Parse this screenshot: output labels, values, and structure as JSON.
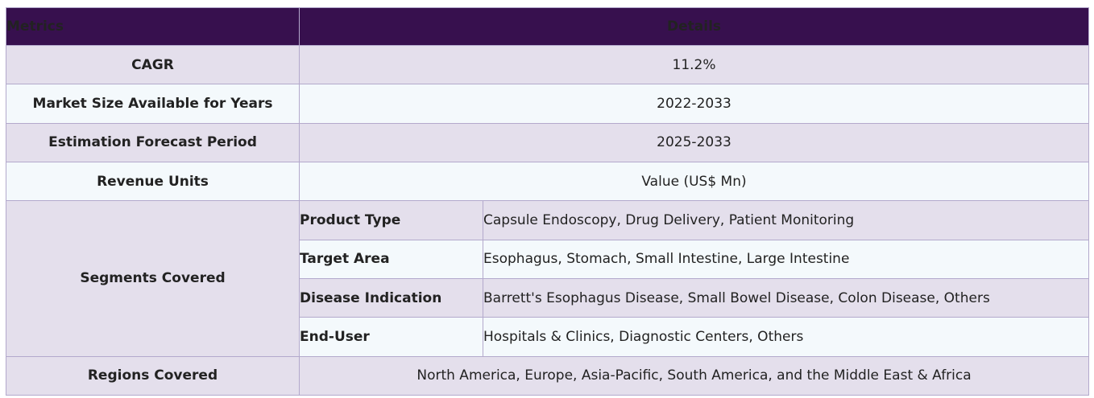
{
  "header": {
    "metrics": "Metrics",
    "details": "Details"
  },
  "rows": [
    {
      "label": "CAGR",
      "value": "11.2%"
    },
    {
      "label": "Market Size Available for Years",
      "value": "2022-2033"
    },
    {
      "label": "Estimation Forecast Period",
      "value": "2025-2033"
    },
    {
      "label": "Revenue Units",
      "value": "Value (US$ Mn)"
    }
  ],
  "segments": {
    "label": "Segments Covered",
    "items": [
      {
        "name": "Product Type",
        "value": "Capsule Endoscopy, Drug Delivery, Patient Monitoring"
      },
      {
        "name": "Target Area",
        "value": "Esophagus, Stomach, Small Intestine, Large Intestine"
      },
      {
        "name": "Disease Indication",
        "value": "Barrett's Esophagus Disease, Small Bowel Disease, Colon Disease, Others"
      },
      {
        "name": "End-User",
        "value": "Hospitals & Clinics, Diagnostic Centers, Others"
      }
    ]
  },
  "regions": {
    "label": "Regions Covered",
    "value": "North America, Europe, Asia-Pacific, South America, and the Middle East & Africa"
  }
}
